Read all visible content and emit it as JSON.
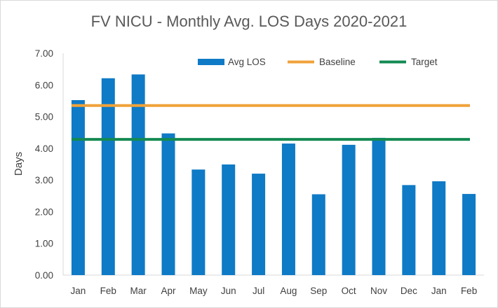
{
  "chart_data": {
    "type": "bar",
    "title": "FV NICU - Monthly Avg. LOS Days 2020-2021",
    "xlabel": "",
    "ylabel": "Days",
    "ylim": [
      0,
      7
    ],
    "yticks": [
      "0.00",
      "1.00",
      "2.00",
      "3.00",
      "4.00",
      "5.00",
      "6.00",
      "7.00"
    ],
    "categories": [
      "Jan",
      "Feb",
      "Mar",
      "Apr",
      "May",
      "Jun",
      "Jul",
      "Aug",
      "Sep",
      "Oct",
      "Nov",
      "Dec",
      "Jan",
      "Feb"
    ],
    "series": [
      {
        "name": "Avg LOS",
        "kind": "bar",
        "color": "#0f7ac6",
        "values": [
          5.52,
          6.21,
          6.33,
          4.47,
          3.33,
          3.49,
          3.2,
          4.15,
          2.55,
          4.11,
          4.33,
          2.84,
          2.96,
          2.56
        ]
      },
      {
        "name": "Baseline",
        "kind": "line",
        "color": "#f0a23a",
        "value": 5.35
      },
      {
        "name": "Target",
        "kind": "line",
        "color": "#138a52",
        "value": 4.28
      }
    ],
    "legend_position": "top-right",
    "grid": false
  }
}
